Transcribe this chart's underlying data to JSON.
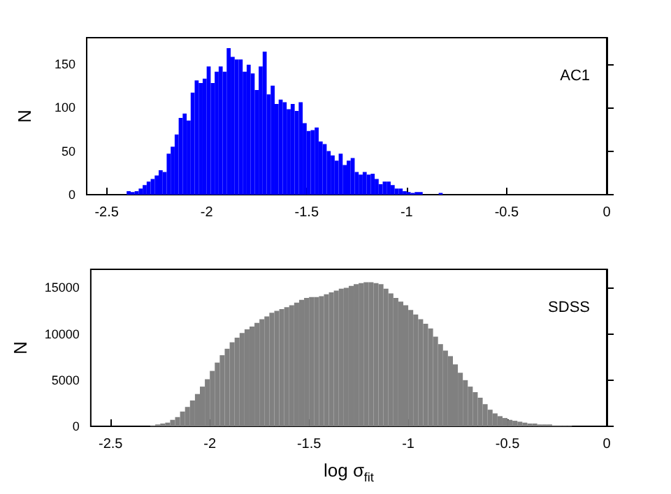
{
  "chart_data": [
    {
      "type": "histogram",
      "ylabel": "N",
      "annotations": [
        "AC1"
      ],
      "color": "#0000ff",
      "xlim": [
        -2.6,
        0
      ],
      "xticks": [
        -2.5,
        -2,
        -1.5,
        -1,
        -0.5,
        0
      ],
      "ylim": [
        0,
        180
      ],
      "yticks": [
        0,
        50,
        100,
        150
      ],
      "bins": [
        -2.4,
        -2.38,
        -2.36,
        -2.34,
        -2.32,
        -2.3,
        -2.28,
        -2.26,
        -2.24,
        -2.22,
        -2.2,
        -2.18,
        -2.16,
        -2.14,
        -2.12,
        -2.1,
        -2.08,
        -2.06,
        -2.04,
        -2.02,
        -2,
        -1.98,
        -1.96,
        -1.94,
        -1.92,
        -1.9,
        -1.88,
        -1.86,
        -1.84,
        -1.82,
        -1.8,
        -1.78,
        -1.76,
        -1.74,
        -1.72,
        -1.7,
        -1.68,
        -1.66,
        -1.64,
        -1.62,
        -1.6,
        -1.58,
        -1.56,
        -1.54,
        -1.52,
        -1.5,
        -1.48,
        -1.46,
        -1.44,
        -1.42,
        -1.4,
        -1.38,
        -1.36,
        -1.34,
        -1.32,
        -1.3,
        -1.28,
        -1.26,
        -1.24,
        -1.22,
        -1.2,
        -1.18,
        -1.16,
        -1.14,
        -1.12,
        -1.1,
        -1.08,
        -1.06,
        -1.04,
        -1.02,
        -1,
        -0.98,
        -0.96,
        -0.94,
        -0.92,
        -0.9,
        -0.88,
        -0.86,
        -0.84,
        -0.82
      ],
      "values": [
        4,
        3,
        4,
        7,
        11,
        15,
        18,
        22,
        28,
        26,
        47,
        55,
        69,
        88,
        93,
        85,
        117,
        131,
        128,
        133,
        147,
        128,
        141,
        147,
        141,
        168,
        158,
        155,
        155,
        141,
        149,
        139,
        120,
        147,
        164,
        115,
        125,
        104,
        109,
        106,
        98,
        104,
        96,
        106,
        82,
        73,
        74,
        77,
        61,
        58,
        50,
        45,
        39,
        47,
        34,
        39,
        42,
        26,
        23,
        26,
        23,
        24,
        18,
        12,
        15,
        15,
        11,
        7,
        7,
        4,
        3,
        2,
        3,
        3,
        0,
        0,
        0,
        0,
        2
      ]
    },
    {
      "type": "histogram",
      "ylabel": "N",
      "xlabel": "log σ$_{fit}$",
      "annotations": [
        "SDSS"
      ],
      "color": "#808080",
      "xlim": [
        -2.6,
        0
      ],
      "xticks": [
        -2.5,
        -2,
        -1.5,
        -1,
        -0.5,
        0
      ],
      "ylim": [
        0,
        17000
      ],
      "yticks": [
        0,
        5000,
        10000,
        15000
      ],
      "bins": [
        -2.5,
        -2.475,
        -2.45,
        -2.425,
        -2.4,
        -2.375,
        -2.35,
        -2.325,
        -2.3,
        -2.275,
        -2.25,
        -2.225,
        -2.2,
        -2.175,
        -2.15,
        -2.125,
        -2.1,
        -2.075,
        -2.05,
        -2.025,
        -2,
        -1.975,
        -1.95,
        -1.925,
        -1.9,
        -1.875,
        -1.85,
        -1.825,
        -1.8,
        -1.775,
        -1.75,
        -1.725,
        -1.7,
        -1.675,
        -1.65,
        -1.625,
        -1.6,
        -1.575,
        -1.55,
        -1.525,
        -1.5,
        -1.475,
        -1.45,
        -1.425,
        -1.4,
        -1.375,
        -1.35,
        -1.325,
        -1.3,
        -1.275,
        -1.25,
        -1.225,
        -1.2,
        -1.175,
        -1.15,
        -1.125,
        -1.1,
        -1.075,
        -1.05,
        -1.025,
        -1,
        -0.975,
        -0.95,
        -0.925,
        -0.9,
        -0.875,
        -0.85,
        -0.825,
        -0.8,
        -0.775,
        -0.75,
        -0.725,
        -0.7,
        -0.675,
        -0.65,
        -0.625,
        -0.6,
        -0.575,
        -0.55,
        -0.525,
        -0.5,
        -0.475,
        -0.45,
        -0.425,
        -0.4,
        -0.375,
        -0.35,
        -0.325,
        -0.3,
        -0.275,
        -0.25,
        -0.225,
        -0.2,
        -0.175,
        -0.15,
        -0.125,
        -0.1,
        -0.075,
        -0.05,
        -0.025,
        0
      ],
      "values": [
        0,
        0,
        0,
        0,
        0,
        0,
        0,
        0,
        100,
        200,
        300,
        400,
        700,
        1000,
        1600,
        2100,
        2800,
        3500,
        4300,
        5100,
        6000,
        6900,
        7700,
        8400,
        9100,
        9600,
        10100,
        10500,
        10800,
        11200,
        11600,
        11900,
        12300,
        12500,
        12700,
        12900,
        13100,
        13400,
        13700,
        13900,
        14000,
        14000,
        14100,
        14300,
        14500,
        14700,
        14900,
        15000,
        15200,
        15400,
        15500,
        15600,
        15600,
        15500,
        15400,
        14900,
        14400,
        13900,
        13500,
        13100,
        12600,
        12100,
        11600,
        11100,
        10600,
        9700,
        8900,
        8200,
        7600,
        6700,
        5800,
        5000,
        4300,
        3700,
        3100,
        2400,
        1800,
        1400,
        1100,
        900,
        700,
        600,
        500,
        400,
        300,
        300,
        200,
        200,
        200,
        100,
        100,
        100,
        100,
        0,
        0,
        0,
        0,
        0,
        0,
        0
      ]
    }
  ]
}
